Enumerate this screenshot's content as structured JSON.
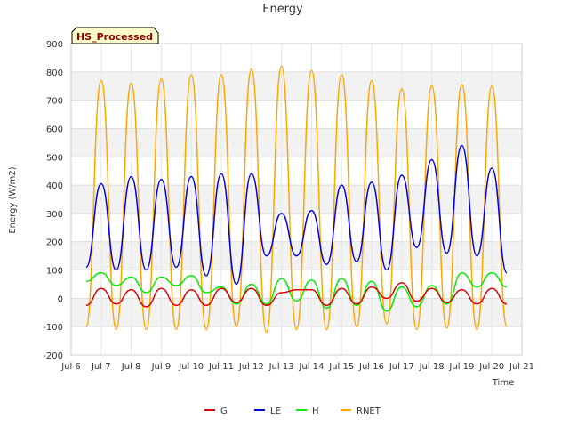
{
  "badge": "HS_Processed",
  "chart_data": {
    "type": "line",
    "title": "Energy",
    "xlabel": "Time",
    "ylabel": "Energy (W/m2)",
    "xlim": [
      "2023-07-06",
      "2023-07-21"
    ],
    "ylim": [
      -200,
      900
    ],
    "yticks": [
      -200,
      -100,
      0,
      100,
      200,
      300,
      400,
      500,
      600,
      700,
      800,
      900
    ],
    "xticks": [
      "Jul 6",
      "Jul 7",
      "Jul 8",
      "Jul 9",
      "Jul 10",
      "Jul 11",
      "Jul 12",
      "Jul 13",
      "Jul 14",
      "Jul 15",
      "Jul 16",
      "Jul 17",
      "Jul 18",
      "Jul 19",
      "Jul 20",
      "Jul 21"
    ],
    "grid": true,
    "legend_position": "bottom",
    "x_dates": [
      "2023-07-06T12:00",
      "2023-07-07T00:00",
      "2023-07-07T12:00",
      "2023-07-08T00:00",
      "2023-07-08T12:00",
      "2023-07-09T00:00",
      "2023-07-09T12:00",
      "2023-07-10T00:00",
      "2023-07-10T12:00",
      "2023-07-11T00:00",
      "2023-07-11T12:00",
      "2023-07-12T00:00",
      "2023-07-12T12:00",
      "2023-07-13T00:00",
      "2023-07-13T12:00",
      "2023-07-14T00:00",
      "2023-07-14T12:00",
      "2023-07-15T00:00",
      "2023-07-15T12:00",
      "2023-07-16T00:00",
      "2023-07-16T12:00",
      "2023-07-17T00:00",
      "2023-07-17T12:00",
      "2023-07-18T00:00",
      "2023-07-18T12:00",
      "2023-07-19T00:00",
      "2023-07-19T12:00",
      "2023-07-20T00:00",
      "2023-07-20T12:00"
    ],
    "series": [
      {
        "name": "G",
        "color": "#dd0000",
        "values": [
          -25,
          35,
          -20,
          30,
          -30,
          35,
          -25,
          30,
          -25,
          35,
          -15,
          35,
          -25,
          20,
          30,
          30,
          -25,
          35,
          -20,
          40,
          0,
          55,
          -10,
          35,
          -15,
          30,
          -20,
          35,
          -20
        ]
      },
      {
        "name": "LE",
        "color": "#0000dd",
        "values": [
          110,
          405,
          100,
          430,
          100,
          420,
          110,
          430,
          80,
          440,
          50,
          440,
          150,
          300,
          150,
          310,
          120,
          400,
          130,
          410,
          100,
          435,
          180,
          490,
          160,
          540,
          150,
          460,
          90
        ]
      },
      {
        "name": "H",
        "color": "#00ee00",
        "values": [
          60,
          90,
          45,
          75,
          20,
          75,
          45,
          80,
          20,
          40,
          -20,
          50,
          -20,
          70,
          -10,
          65,
          -35,
          70,
          -25,
          60,
          -45,
          40,
          -30,
          45,
          -20,
          90,
          40,
          90,
          40
        ]
      },
      {
        "name": "RNET",
        "color": "#ffa500",
        "values": [
          -100,
          770,
          -110,
          760,
          -110,
          775,
          -110,
          790,
          -110,
          790,
          -100,
          810,
          -120,
          820,
          -110,
          805,
          -110,
          790,
          -100,
          770,
          -90,
          740,
          -110,
          750,
          -105,
          755,
          -110,
          750,
          -100
        ]
      }
    ]
  }
}
